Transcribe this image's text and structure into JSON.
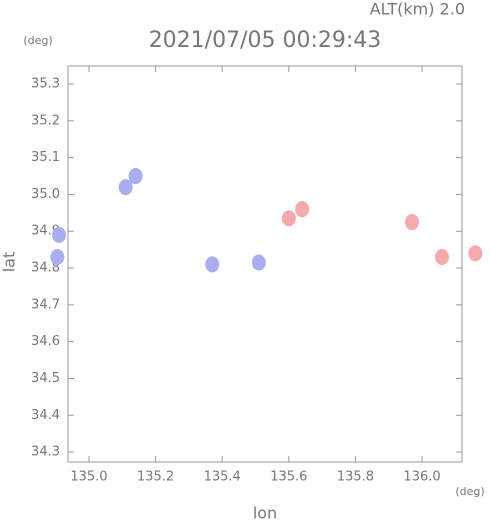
{
  "chart_data": {
    "type": "scatter",
    "title": "2021/07/05 00:29:43",
    "subtitle": "ALT(km)  2.0",
    "x_label": "lon",
    "y_label": "lat",
    "x_unit": "(deg)",
    "y_unit": "(deg)",
    "xlim": [
      134.937,
      136.12
    ],
    "ylim": [
      34.273,
      35.349
    ],
    "xticks": [
      {
        "value": 135,
        "label": "135.0"
      },
      135.2,
      135.4,
      135.6,
      135.8,
      {
        "value": 136,
        "label": "136.0"
      }
    ],
    "yticks": [
      34.3,
      34.4,
      34.5,
      34.6,
      34.7,
      34.8,
      34.9,
      {
        "value": 35,
        "label": "35.0"
      },
      35.1,
      35.2,
      35.3
    ],
    "series": [
      {
        "color": "#a8aef0",
        "x": [
          134.905,
          134.91,
          135.11,
          135.14,
          135.37,
          135.51
        ],
        "y": [
          34.83,
          34.89,
          35.02,
          35.05,
          34.81,
          34.815
        ]
      },
      {
        "color": "#f4aaaa",
        "x": [
          135.6,
          135.64,
          135.97,
          136.06,
          136.16
        ],
        "y": [
          34.935,
          34.96,
          34.925,
          34.83,
          34.84
        ]
      }
    ]
  }
}
